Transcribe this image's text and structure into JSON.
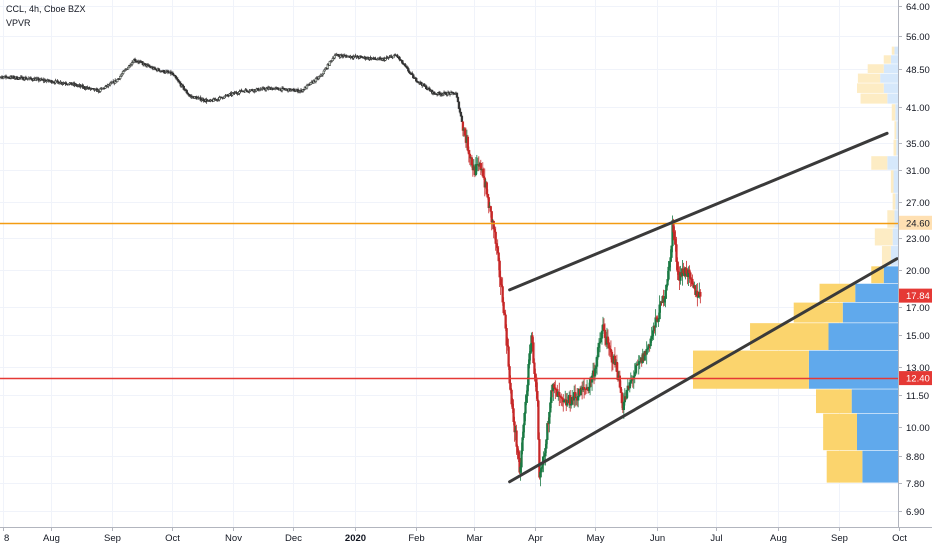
{
  "header": {
    "symbol_line": "CCL, 4h, Cboe BZX",
    "indicator": "VPVR"
  },
  "chart_data": {
    "type": "candlestick",
    "symbol": "CCL",
    "interval": "4h",
    "exchange": "Cboe BZX",
    "indicator": "VPVR",
    "y_scale": "log",
    "ylim": [
      6.4,
      65
    ],
    "y_ticks": [
      "64.00",
      "56.00",
      "48.50",
      "41.00",
      "35.00",
      "31.00",
      "27.00",
      "23.00",
      "20.00",
      "17.00",
      "15.00",
      "13.00",
      "11.50",
      "10.00",
      "8.80",
      "7.80",
      "6.90"
    ],
    "x_ticks": [
      {
        "label": "8",
        "date": "2019-07-08"
      },
      {
        "label": "Aug",
        "date": "2019-08-01"
      },
      {
        "label": "Sep",
        "date": "2019-09-01"
      },
      {
        "label": "Oct",
        "date": "2019-10-01"
      },
      {
        "label": "Nov",
        "date": "2019-11-01"
      },
      {
        "label": "Dec",
        "date": "2019-12-01"
      },
      {
        "label": "2020",
        "date": "2020-01-01",
        "bold": true
      },
      {
        "label": "Feb",
        "date": "2020-02-01"
      },
      {
        "label": "Mar",
        "date": "2020-03-01"
      },
      {
        "label": "Apr",
        "date": "2020-04-01"
      },
      {
        "label": "May",
        "date": "2020-05-01"
      },
      {
        "label": "Jun",
        "date": "2020-06-01"
      },
      {
        "label": "Jul",
        "date": "2020-07-01"
      },
      {
        "label": "Aug",
        "date": "2020-08-01"
      },
      {
        "label": "Sep",
        "date": "2020-09-01"
      },
      {
        "label": "Oct",
        "date": "2020-10-01"
      }
    ],
    "price_path": [
      [
        "2019-07-01",
        47.0
      ],
      [
        "2019-07-20",
        46.5
      ],
      [
        "2019-08-10",
        45.5
      ],
      [
        "2019-08-25",
        44.0
      ],
      [
        "2019-09-03",
        46.0
      ],
      [
        "2019-09-12",
        50.5
      ],
      [
        "2019-09-22",
        48.5
      ],
      [
        "2019-10-01",
        47.5
      ],
      [
        "2019-10-10",
        43.0
      ],
      [
        "2019-10-20",
        42.0
      ],
      [
        "2019-11-05",
        44.0
      ],
      [
        "2019-11-20",
        44.5
      ],
      [
        "2019-12-05",
        44.0
      ],
      [
        "2019-12-15",
        47.0
      ],
      [
        "2019-12-22",
        51.5
      ],
      [
        "2020-01-05",
        51.0
      ],
      [
        "2020-01-15",
        50.5
      ],
      [
        "2020-01-22",
        51.5
      ],
      [
        "2020-01-31",
        46.5
      ],
      [
        "2020-02-10",
        43.5
      ],
      [
        "2020-02-21",
        43.5
      ],
      [
        "2020-02-25",
        37.0
      ],
      [
        "2020-03-01",
        31.0
      ],
      [
        "2020-03-05",
        31.5
      ],
      [
        "2020-03-09",
        26.0
      ],
      [
        "2020-03-11",
        24.0
      ],
      [
        "2020-03-13",
        21.0
      ],
      [
        "2020-03-16",
        17.0
      ],
      [
        "2020-03-18",
        14.0
      ],
      [
        "2020-03-20",
        11.0
      ],
      [
        "2020-03-23",
        9.0
      ],
      [
        "2020-03-24",
        8.0
      ],
      [
        "2020-03-26",
        10.0
      ],
      [
        "2020-03-30",
        15.0
      ],
      [
        "2020-04-02",
        11.0
      ],
      [
        "2020-04-03",
        7.8
      ],
      [
        "2020-04-06",
        9.0
      ],
      [
        "2020-04-09",
        12.0
      ],
      [
        "2020-04-15",
        11.0
      ],
      [
        "2020-04-22",
        11.5
      ],
      [
        "2020-04-28",
        12.0
      ],
      [
        "2020-05-01",
        13.0
      ],
      [
        "2020-05-05",
        15.5
      ],
      [
        "2020-05-08",
        14.0
      ],
      [
        "2020-05-12",
        13.0
      ],
      [
        "2020-05-15",
        11.0
      ],
      [
        "2020-05-20",
        12.5
      ],
      [
        "2020-05-27",
        14.0
      ],
      [
        "2020-06-01",
        16.0
      ],
      [
        "2020-06-05",
        18.0
      ],
      [
        "2020-06-08",
        21.0
      ],
      [
        "2020-06-09",
        24.6
      ],
      [
        "2020-06-12",
        19.5
      ],
      [
        "2020-06-16",
        20.0
      ],
      [
        "2020-06-19",
        18.5
      ],
      [
        "2020-06-23",
        17.8
      ]
    ],
    "horizontal_lines": [
      {
        "price": 24.6,
        "label": "24.60",
        "color": "#f39c12",
        "label_bg": "#ffe0b2",
        "label_color": "#131722"
      },
      {
        "price": 12.4,
        "label": "12.40",
        "color": "#e53935",
        "label_bg": "#e53935",
        "label_color": "#ffffff"
      }
    ],
    "last_price": {
      "price": 17.84,
      "label": "17.84",
      "bg": "#e53935",
      "color": "#ffffff"
    },
    "channel": {
      "color": "#3a3a3a",
      "upper": [
        [
          "2020-03-19",
          18.3
        ],
        [
          "2020-09-25",
          36.5
        ]
      ],
      "lower": [
        [
          "2020-03-19",
          7.85
        ],
        [
          "2020-09-30",
          21.0
        ]
      ]
    },
    "volume_profile": {
      "up_color": "#60a9ec",
      "down_color": "#fbd46d",
      "up_color_light": "#d6e8fb",
      "down_color_light": "#fdecc4",
      "rows": [
        {
          "low": 7.8,
          "high": 9.0,
          "up": 40,
          "down": 40
        },
        {
          "low": 9.0,
          "high": 10.6,
          "up": 46,
          "down": 38
        },
        {
          "low": 10.6,
          "high": 11.8,
          "up": 52,
          "down": 40
        },
        {
          "low": 11.8,
          "high": 14.0,
          "up": 100,
          "down": 130
        },
        {
          "low": 14.0,
          "high": 15.8,
          "up": 78,
          "down": 88
        },
        {
          "low": 15.8,
          "high": 17.3,
          "up": 62,
          "down": 55
        },
        {
          "low": 17.3,
          "high": 18.8,
          "up": 48,
          "down": 40
        },
        {
          "low": 18.8,
          "high": 20.3,
          "up": 16,
          "down": 14
        },
        {
          "low": 20.3,
          "high": 22.2,
          "up": 8,
          "down": 10
        },
        {
          "low": 22.2,
          "high": 24.0,
          "up": 6,
          "down": 20
        },
        {
          "low": 24.0,
          "high": 26.0,
          "up": 4,
          "down": 8
        },
        {
          "low": 26.0,
          "high": 28.0,
          "up": 3,
          "down": 3
        },
        {
          "low": 28.0,
          "high": 31.0,
          "up": 5,
          "down": 3
        },
        {
          "low": 31.0,
          "high": 33.0,
          "up": 12,
          "down": 18
        },
        {
          "low": 33.0,
          "high": 35.5,
          "up": 2,
          "down": 3
        },
        {
          "low": 35.5,
          "high": 38.5,
          "up": 2,
          "down": 2
        },
        {
          "low": 38.5,
          "high": 41.5,
          "up": 3,
          "down": 4
        },
        {
          "low": 41.5,
          "high": 43.5,
          "up": 12,
          "down": 30
        },
        {
          "low": 43.5,
          "high": 45.5,
          "up": 16,
          "down": 30
        },
        {
          "low": 45.5,
          "high": 47.5,
          "up": 20,
          "down": 25
        },
        {
          "low": 47.5,
          "high": 49.5,
          "up": 16,
          "down": 18
        },
        {
          "low": 49.5,
          "high": 51.5,
          "up": 8,
          "down": 8
        },
        {
          "low": 51.5,
          "high": 53.5,
          "up": 4,
          "down": 3
        }
      ]
    }
  }
}
